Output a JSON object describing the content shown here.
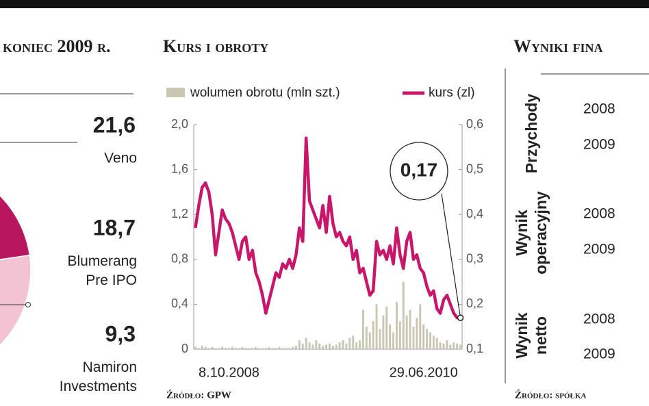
{
  "chart_data": [
    {
      "type": "pie",
      "title": "koniec 2009 r.",
      "categories": [
        "Veno",
        "Blumerang\nPre IPO",
        "Namiron\nInvestments"
      ],
      "values": [
        21.6,
        18.7,
        9.3
      ],
      "value_labels": [
        "21,6",
        "18,7",
        "9,3"
      ],
      "colors": [
        "#b8175f",
        "#f3c3d3",
        "#fbe4ec"
      ]
    },
    {
      "type": "line",
      "title": "Kurs i obroty",
      "source": "Źródło: GPW",
      "categories": [
        null,
        null,
        null,
        null,
        null,
        null,
        null,
        null,
        null,
        null,
        "8.10.2008",
        null,
        null,
        null,
        null,
        null,
        null,
        null,
        null,
        null,
        null,
        null,
        null,
        null,
        null,
        null,
        null,
        null,
        null,
        null,
        null,
        null,
        null,
        null,
        null,
        null,
        null,
        null,
        null,
        null,
        null,
        null,
        null,
        null,
        null,
        null,
        null,
        null,
        null,
        null,
        null,
        null,
        null,
        null,
        null,
        null,
        null,
        null,
        null,
        null,
        null,
        null,
        null,
        null,
        null,
        null,
        null,
        null,
        "29.06.2010",
        null,
        null,
        null,
        null,
        null,
        null,
        null,
        null,
        null,
        null,
        null
      ],
      "series": [
        {
          "name": "wolumen obrotu (mln szt.)",
          "type": "bar",
          "axis": "y",
          "color": "#c9c7b3",
          "values": [
            0.02,
            0.01,
            0.03,
            0.02,
            0.01,
            0.02,
            0.01,
            0.01,
            0.02,
            0.01,
            0.01,
            0.02,
            0.01,
            0.01,
            0.02,
            0.01,
            0.01,
            0.01,
            0.02,
            0.01,
            0.01,
            0.01,
            0.02,
            0.01,
            0.01,
            0.02,
            0.01,
            0.01,
            0.01,
            0.02,
            0.03,
            0.08,
            0.05,
            0.1,
            0.06,
            0.04,
            0.08,
            0.05,
            0.03,
            0.04,
            0.05,
            0.03,
            0.04,
            0.06,
            0.08,
            0.05,
            0.1,
            0.12,
            0.06,
            0.08,
            0.35,
            0.2,
            0.15,
            0.25,
            0.4,
            0.18,
            0.3,
            0.38,
            0.22,
            0.15,
            0.42,
            0.25,
            0.6,
            0.3,
            0.35,
            0.2,
            0.28,
            0.4,
            0.22,
            0.18,
            0.15,
            0.12,
            0.1,
            0.06,
            0.05,
            0.08,
            0.04,
            0.06,
            0.05,
            0.04
          ]
        },
        {
          "name": "kurs (zl)",
          "type": "line",
          "axis": "y2",
          "color": "#c8176a",
          "values": [
            0.37,
            0.42,
            0.46,
            0.47,
            0.45,
            0.4,
            0.31,
            0.36,
            0.41,
            0.39,
            0.38,
            0.36,
            0.33,
            0.3,
            0.34,
            0.35,
            0.3,
            0.32,
            0.27,
            0.25,
            0.22,
            0.18,
            0.21,
            0.24,
            0.27,
            0.26,
            0.29,
            0.28,
            0.3,
            0.28,
            0.31,
            0.37,
            0.34,
            0.57,
            0.43,
            0.41,
            0.39,
            0.37,
            0.42,
            0.36,
            0.44,
            0.38,
            0.35,
            0.36,
            0.34,
            0.33,
            0.35,
            0.3,
            0.32,
            0.27,
            0.28,
            0.25,
            0.22,
            0.23,
            0.34,
            0.31,
            0.32,
            0.3,
            0.33,
            0.29,
            0.37,
            0.31,
            0.28,
            0.34,
            0.36,
            0.3,
            0.31,
            0.28,
            0.27,
            0.24,
            0.22,
            0.23,
            0.19,
            0.18,
            0.21,
            0.22,
            0.2,
            0.18,
            0.17,
            0.17
          ]
        }
      ],
      "ylim": [
        0,
        2
      ],
      "yticks": [
        0,
        {
          "value": 0.4,
          "label": "0,4"
        },
        {
          "value": 0.8,
          "label": "0,8"
        },
        {
          "value": 1.2,
          "label": "1,2"
        },
        {
          "value": 1.6,
          "label": "1,6"
        },
        {
          "value": 2,
          "label": "2,0"
        }
      ],
      "y2lim": [
        0.1,
        0.6
      ],
      "y2ticks": [
        {
          "value": 0.1,
          "label": "0,1"
        },
        {
          "value": 0.2,
          "label": "0,2"
        },
        {
          "value": 0.3,
          "label": "0,3"
        },
        {
          "value": 0.4,
          "label": "0,4"
        },
        {
          "value": 0.5,
          "label": "0,5"
        },
        {
          "value": 0.6,
          "label": "0,6"
        }
      ],
      "annotation": {
        "value": 0.17,
        "label": "0,17"
      }
    }
  ],
  "financials": {
    "title": "Wyniki fina",
    "source": "Źródło: spółka",
    "groups": [
      {
        "label": "Przychody",
        "years": [
          "2008",
          "2009"
        ]
      },
      {
        "label": "Wynik\noperacyjny",
        "years": [
          "2008",
          "2009"
        ]
      },
      {
        "label": "Wynik\nnetto",
        "years": [
          "2008",
          "2009"
        ]
      }
    ]
  }
}
